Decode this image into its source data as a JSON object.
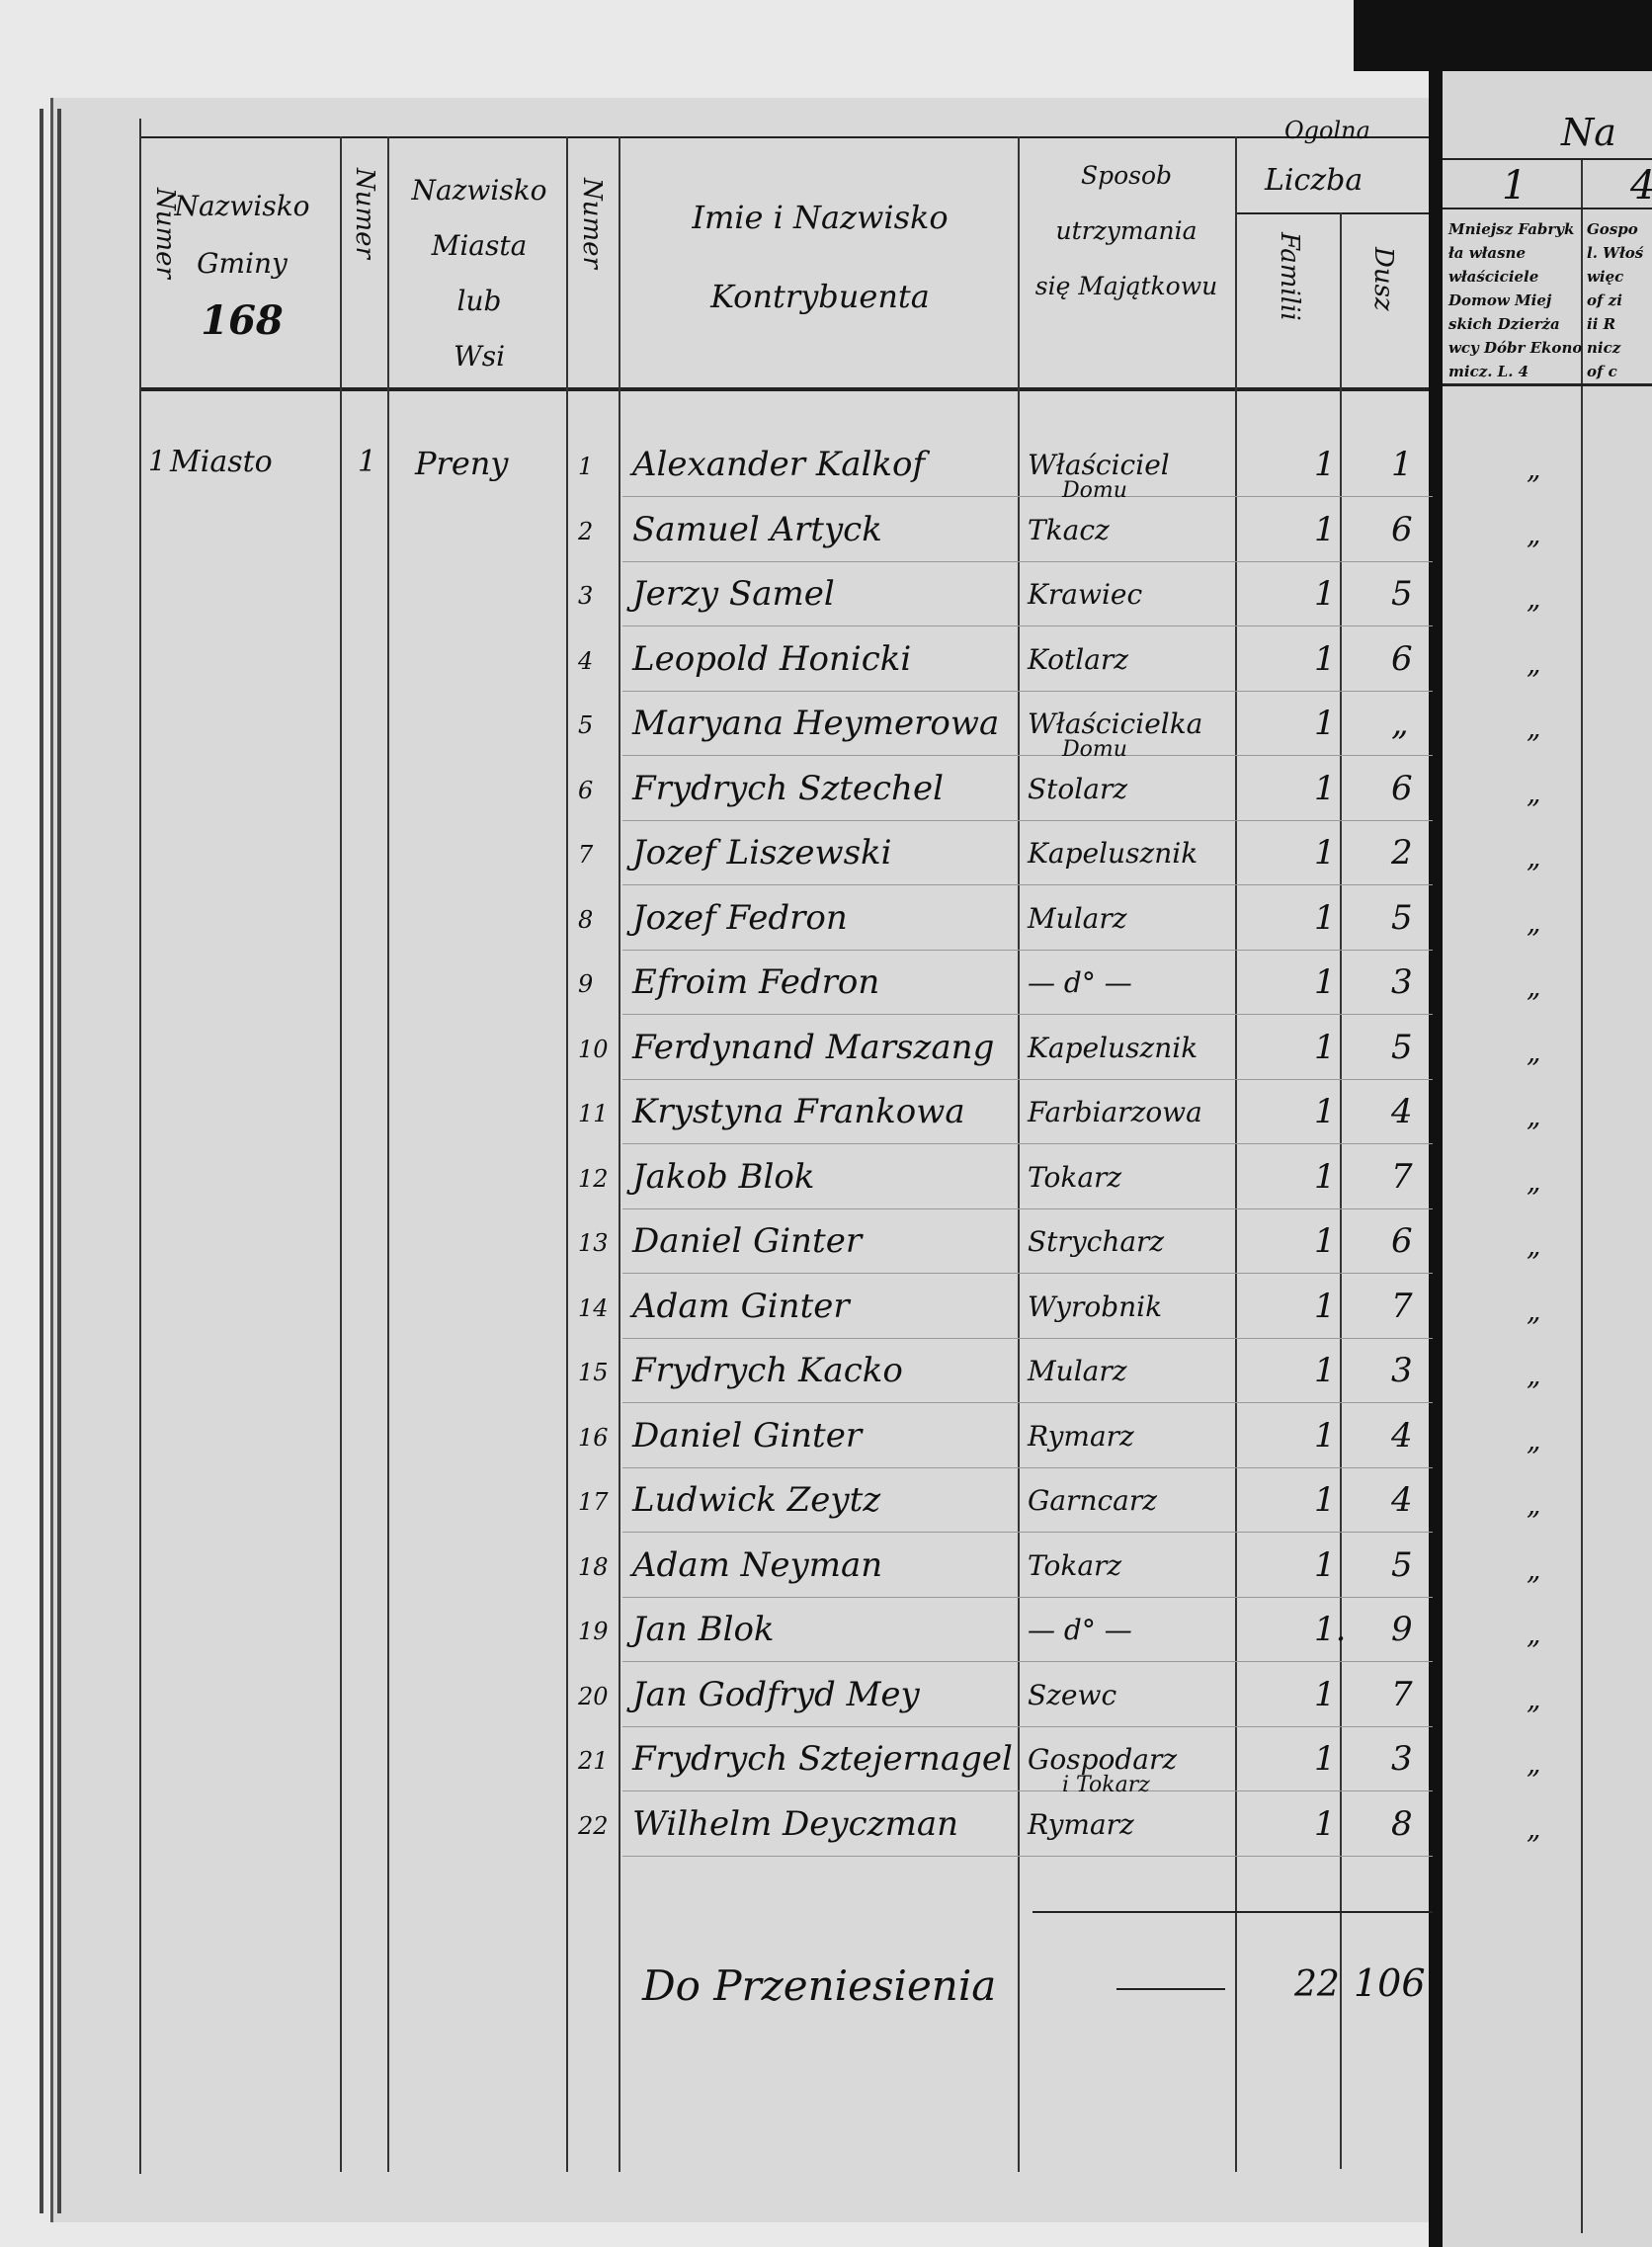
{
  "header": {
    "col_numer_1": "Numer",
    "col_gmina": [
      "Nazwisko",
      "Gminy"
    ],
    "gmina_number": "168",
    "col_numer_2": "Numer",
    "col_miasto": [
      "Nazwisko",
      "Miasta",
      "lub",
      "Wsi"
    ],
    "col_numer_3": "Numer",
    "col_name": [
      "Imie i Nazwisko",
      "Kontrybuenta"
    ],
    "col_sposob": [
      "Sposob",
      "utrzymania",
      "się Majątkowu"
    ],
    "col_liczba": [
      "Ogolna",
      "Liczba"
    ],
    "col_familii": "Familii",
    "col_dusz": "Dusz"
  },
  "right_page": {
    "title": "Na",
    "col1_number": "1",
    "col2_number": "4",
    "col1_text": [
      "Mniejsz Fabryk",
      "ła własne",
      "właściciele",
      "Domow Miej",
      "skich Dzierża",
      "wcy Dóbr Ekono",
      "micz. L. 4"
    ],
    "col2_text": [
      "Gospo",
      "l. Włoś",
      "więc",
      "of zi",
      "ii R",
      "nicz",
      "of c"
    ],
    "ditto": "„"
  },
  "location": {
    "gmina_number": "1",
    "gmina": "Miasto",
    "miasto_number": "1",
    "miasto": "Preny"
  },
  "rows": [
    {
      "no": "1",
      "name": "Alexander Kalkof",
      "occupation": "Właściciel",
      "occupation_2": "Domu",
      "familii": "1",
      "dusz": "1"
    },
    {
      "no": "2",
      "name": "Samuel Artyck",
      "occupation": "Tkacz",
      "occupation_2": "",
      "familii": "1",
      "dusz": "6"
    },
    {
      "no": "3",
      "name": "Jerzy Samel",
      "occupation": "Krawiec",
      "occupation_2": "",
      "familii": "1",
      "dusz": "5"
    },
    {
      "no": "4",
      "name": "Leopold Honicki",
      "occupation": "Kotlarz",
      "occupation_2": "",
      "familii": "1",
      "dusz": "6"
    },
    {
      "no": "5",
      "name": "Maryana Heymerowa",
      "occupation": "Właścicielka",
      "occupation_2": "Domu",
      "familii": "1",
      "dusz": "„"
    },
    {
      "no": "6",
      "name": "Frydrych Sztechel",
      "occupation": "Stolarz",
      "occupation_2": "",
      "familii": "1",
      "dusz": "6"
    },
    {
      "no": "7",
      "name": "Jozef Liszewski",
      "occupation": "Kapelusznik",
      "occupation_2": "",
      "familii": "1",
      "dusz": "2"
    },
    {
      "no": "8",
      "name": "Jozef Fedron",
      "occupation": "Mularz",
      "occupation_2": "",
      "familii": "1",
      "dusz": "5"
    },
    {
      "no": "9",
      "name": "Efroim Fedron",
      "occupation": "— d° —",
      "occupation_2": "",
      "familii": "1",
      "dusz": "3"
    },
    {
      "no": "10",
      "name": "Ferdynand Marszang",
      "occupation": "Kapelusznik",
      "occupation_2": "",
      "familii": "1",
      "dusz": "5"
    },
    {
      "no": "11",
      "name": "Krystyna Frankowa",
      "occupation": "Farbiarzowa",
      "occupation_2": "",
      "familii": "1",
      "dusz": "4"
    },
    {
      "no": "12",
      "name": "Jakob Blok",
      "occupation": "Tokarz",
      "occupation_2": "",
      "familii": "1",
      "dusz": "7"
    },
    {
      "no": "13",
      "name": "Daniel Ginter",
      "occupation": "Strycharz",
      "occupation_2": "",
      "familii": "1",
      "dusz": "6"
    },
    {
      "no": "14",
      "name": "Adam Ginter",
      "occupation": "Wyrobnik",
      "occupation_2": "",
      "familii": "1",
      "dusz": "7"
    },
    {
      "no": "15",
      "name": "Frydrych Kacko",
      "occupation": "Mularz",
      "occupation_2": "",
      "familii": "1",
      "dusz": "3"
    },
    {
      "no": "16",
      "name": "Daniel Ginter",
      "occupation": "Rymarz",
      "occupation_2": "",
      "familii": "1",
      "dusz": "4"
    },
    {
      "no": "17",
      "name": "Ludwick Zeytz",
      "occupation": "Garncarz",
      "occupation_2": "",
      "familii": "1",
      "dusz": "4"
    },
    {
      "no": "18",
      "name": "Adam Neyman",
      "occupation": "Tokarz",
      "occupation_2": "",
      "familii": "1",
      "dusz": "5"
    },
    {
      "no": "19",
      "name": "Jan Blok",
      "occupation": "— d° —",
      "occupation_2": "",
      "familii": "1.",
      "dusz": "9"
    },
    {
      "no": "20",
      "name": "Jan Godfryd Mey",
      "occupation": "Szewc",
      "occupation_2": "",
      "familii": "1",
      "dusz": "7"
    },
    {
      "no": "21",
      "name": "Frydrych Sztejernagel",
      "occupation": "Gospodarz",
      "occupation_2": "i Tokarz",
      "familii": "1",
      "dusz": "3"
    },
    {
      "no": "22",
      "name": "Wilhelm Deyczman",
      "occupation": "Rymarz",
      "occupation_2": "",
      "familii": "1",
      "dusz": "8"
    }
  ],
  "total": {
    "label": "Do Przeniesienia",
    "familii": "22",
    "dusz": "106."
  }
}
